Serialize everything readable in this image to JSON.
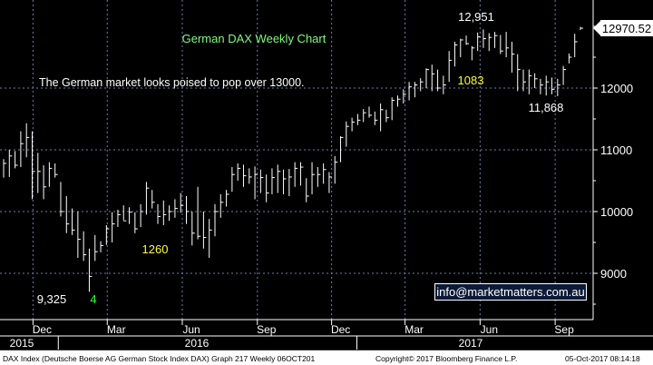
{
  "chart_data": {
    "type": "ohlc",
    "title": "German DAX Weekly Chart",
    "subtitle": "The German market looks poised to pop over 13000.",
    "y_ticks": [
      9000,
      10000,
      11000,
      12000
    ],
    "ylim": [
      8250,
      13500
    ],
    "x_tick_labels": [
      "Dec",
      "Mar",
      "Jun",
      "Sep",
      "Dec",
      "Mar",
      "Jun",
      "Sep"
    ],
    "year_labels": [
      "2015",
      "2016",
      "2017"
    ],
    "last_price": "12970.52",
    "point_labels": [
      {
        "text": "12,951",
        "color": "#ffffff"
      },
      {
        "text": "11,868",
        "color": "#ffffff"
      },
      {
        "text": "9,325",
        "color": "#ffffff"
      },
      {
        "text": "1083",
        "color": "#ffff33"
      },
      {
        "text": "1260",
        "color": "#ffff33"
      },
      {
        "text": "4",
        "color": "#33ff33"
      }
    ],
    "series": {
      "weeks": [
        "2015-10-26",
        "2015-11-02",
        "2015-11-09",
        "2015-11-16",
        "2015-11-23",
        "2015-11-30",
        "2015-12-07",
        "2015-12-14",
        "2015-12-21",
        "2015-12-28",
        "2016-01-04",
        "2016-01-11",
        "2016-01-18",
        "2016-01-25",
        "2016-02-01",
        "2016-02-08",
        "2016-02-15",
        "2016-02-22",
        "2016-02-29",
        "2016-03-07",
        "2016-03-14",
        "2016-03-21",
        "2016-03-28",
        "2016-04-04",
        "2016-04-11",
        "2016-04-18",
        "2016-04-25",
        "2016-05-02",
        "2016-05-09",
        "2016-05-16",
        "2016-05-23",
        "2016-05-30",
        "2016-06-06",
        "2016-06-13",
        "2016-06-20",
        "2016-06-27",
        "2016-07-04",
        "2016-07-11",
        "2016-07-18",
        "2016-07-25",
        "2016-08-01",
        "2016-08-08",
        "2016-08-15",
        "2016-08-22",
        "2016-08-29",
        "2016-09-05",
        "2016-09-12",
        "2016-09-19",
        "2016-09-26",
        "2016-10-03",
        "2016-10-10",
        "2016-10-17",
        "2016-10-24",
        "2016-10-31",
        "2016-11-07",
        "2016-11-14",
        "2016-11-21",
        "2016-11-28",
        "2016-12-05",
        "2016-12-12",
        "2016-12-19",
        "2016-12-26",
        "2017-01-02",
        "2017-01-09",
        "2017-01-16",
        "2017-01-23",
        "2017-01-30",
        "2017-02-06",
        "2017-02-13",
        "2017-02-20",
        "2017-02-27",
        "2017-03-06",
        "2017-03-13",
        "2017-03-20",
        "2017-03-27",
        "2017-04-03",
        "2017-04-10",
        "2017-04-17",
        "2017-04-24",
        "2017-05-01",
        "2017-05-08",
        "2017-05-15",
        "2017-05-22",
        "2017-05-29",
        "2017-06-05",
        "2017-06-12",
        "2017-06-19",
        "2017-06-26",
        "2017-07-03",
        "2017-07-10",
        "2017-07-17",
        "2017-07-24",
        "2017-07-31",
        "2017-08-07",
        "2017-08-14",
        "2017-08-21",
        "2017-08-28",
        "2017-09-04",
        "2017-09-11",
        "2017-09-18",
        "2017-09-25",
        "2017-10-02"
      ],
      "high": [
        10850,
        11000,
        10980,
        11300,
        11430,
        11300,
        10950,
        10750,
        10800,
        10780,
        10480,
        10250,
        10050,
        10000,
        9680,
        9400,
        9620,
        9520,
        9780,
        9990,
        10030,
        10100,
        10070,
        9990,
        10120,
        10480,
        10350,
        10120,
        10180,
        10100,
        10200,
        10300,
        10250,
        10000,
        10400,
        10000,
        9880,
        10120,
        10280,
        10350,
        10720,
        10780,
        10760,
        10700,
        10730,
        10680,
        10600,
        10700,
        10760,
        10680,
        10690,
        10800,
        10800,
        10540,
        10800,
        10720,
        10780,
        10640,
        10900,
        11220,
        11460,
        11520,
        11580,
        11660,
        11700,
        11620,
        11750,
        11650,
        11850,
        11880,
        11980,
        12100,
        12100,
        12160,
        12320,
        12380,
        12300,
        12200,
        12600,
        12750,
        12800,
        12850,
        12680,
        12900,
        12950,
        12890,
        12910,
        12860,
        12910,
        12750,
        12550,
        12300,
        12300,
        12240,
        12150,
        12200,
        12170,
        12150,
        12360,
        12560,
        12880,
        12990
      ],
      "low": [
        10550,
        10560,
        10700,
        10720,
        10880,
        10200,
        10300,
        10200,
        10400,
        10550,
        9920,
        9650,
        9620,
        9250,
        9200,
        8700,
        9200,
        9340,
        9460,
        9500,
        9750,
        9860,
        9800,
        9650,
        9750,
        9950,
        10050,
        9800,
        9780,
        9850,
        9900,
        9980,
        9800,
        9450,
        9550,
        9400,
        9250,
        9600,
        9900,
        10080,
        10320,
        10500,
        10400,
        10450,
        10200,
        10300,
        10150,
        10280,
        10300,
        10280,
        10250,
        10400,
        10420,
        10150,
        10280,
        10400,
        10450,
        10300,
        10450,
        10800,
        11050,
        11300,
        11400,
        11450,
        11520,
        11400,
        11300,
        11450,
        11480,
        11700,
        11750,
        11800,
        11850,
        11950,
        12000,
        11950,
        11950,
        11900,
        12100,
        12350,
        12500,
        12700,
        12450,
        12600,
        12650,
        12600,
        12650,
        12550,
        12500,
        12250,
        11950,
        11950,
        11900,
        12000,
        11900,
        11880,
        11900,
        11868,
        12050,
        12400,
        12500,
        12940
      ],
      "close": [
        10780,
        10900,
        10750,
        11100,
        11200,
        10650,
        10650,
        10400,
        10700,
        10600,
        10000,
        9800,
        9700,
        9550,
        9300,
        8950,
        9350,
        9450,
        9720,
        9800,
        9950,
        9850,
        9990,
        9720,
        10000,
        10380,
        10150,
        9920,
        9950,
        10000,
        10050,
        10100,
        10000,
        9650,
        9600,
        9580,
        9700,
        10000,
        10150,
        10280,
        10600,
        10700,
        10580,
        10560,
        10600,
        10550,
        10300,
        10550,
        10650,
        10530,
        10560,
        10700,
        10720,
        10250,
        10600,
        10600,
        10680,
        10560,
        10800,
        11200,
        11380,
        11450,
        11480,
        11600,
        11560,
        11480,
        11650,
        11520,
        11800,
        11820,
        11900,
        12020,
        12050,
        12100,
        12300,
        12230,
        12000,
        12050,
        12450,
        12700,
        12780,
        12720,
        12650,
        12830,
        12800,
        12820,
        12850,
        12600,
        12650,
        12550,
        12300,
        12100,
        12200,
        12150,
        12050,
        12100,
        11980,
        12050,
        12300,
        12500,
        12750,
        12970
      ]
    }
  },
  "contact": "info@marketmatters.com.au",
  "footer": {
    "left": "DAX Index (Deutsche Boerse AG German Stock Index DAX) Graph 217  Weekly 06OCT201",
    "middle": "Copyright© 2017 Bloomberg Finance L.P.",
    "right": "05-Oct-2017 08:14:18"
  },
  "colors": {
    "background": "#000000",
    "bars": "#ffffff",
    "title_text": "#7CFC7C",
    "annotation_yellow": "#ffff33",
    "annotation_green": "#33ff33",
    "grid": "#6b7fa8"
  }
}
